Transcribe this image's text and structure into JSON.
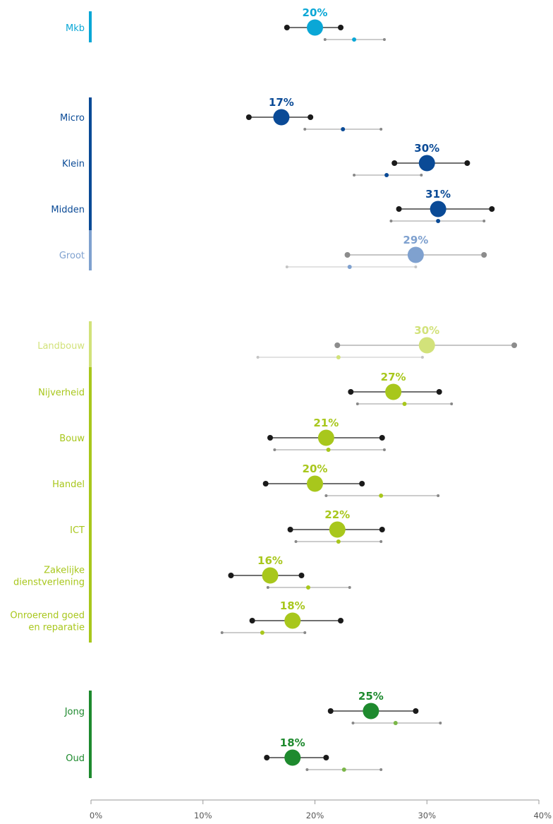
{
  "chart_data": {
    "type": "dot-range",
    "xlim": [
      0,
      40
    ],
    "x_ticks": [
      "0%",
      "10%",
      "20%",
      "30%",
      "40%"
    ],
    "groups": [
      {
        "name": "mkb",
        "color": "#0aa7d6",
        "rows": [
          {
            "label": [
              "Mkb"
            ],
            "value": 20,
            "pct_label": "20%",
            "range": [
              17.5,
              22.3
            ],
            "ref_value": 23.5,
            "ref_range": [
              20.9,
              26.2
            ],
            "color": "#0aa7d6"
          }
        ]
      },
      {
        "name": "grootte",
        "color": "#0a4a96",
        "rows": [
          {
            "label": [
              "Micro"
            ],
            "value": 17,
            "pct_label": "17%",
            "range": [
              14.1,
              19.6
            ],
            "ref_value": 22.5,
            "ref_range": [
              19.1,
              25.9
            ],
            "color": "#0a4a96"
          },
          {
            "label": [
              "Klein"
            ],
            "value": 30,
            "pct_label": "30%",
            "range": [
              27.1,
              33.6
            ],
            "ref_value": 26.4,
            "ref_range": [
              23.5,
              29.5
            ],
            "color": "#0a4a96"
          },
          {
            "label": [
              "Midden"
            ],
            "value": 31,
            "pct_label": "31%",
            "range": [
              27.5,
              35.8
            ],
            "ref_value": 31.0,
            "ref_range": [
              26.8,
              35.1
            ],
            "color": "#0a4a96"
          },
          {
            "label": [
              "Groot"
            ],
            "value": 29,
            "pct_label": "29%",
            "range": [
              22.9,
              35.1
            ],
            "ref_value": 23.1,
            "ref_range": [
              17.5,
              29.0
            ],
            "color": "#7fa1cf",
            "light": true
          }
        ]
      },
      {
        "name": "sector",
        "color": "#a8c71c",
        "rows": [
          {
            "label": [
              "Landbouw"
            ],
            "value": 30,
            "pct_label": "30%",
            "range": [
              22.0,
              37.8
            ],
            "ref_value": 22.1,
            "ref_range": [
              14.9,
              29.6
            ],
            "color": "#d2e27a",
            "light": true
          },
          {
            "label": [
              "Nijverheid"
            ],
            "value": 27,
            "pct_label": "27%",
            "range": [
              23.2,
              31.1
            ],
            "ref_value": 28.0,
            "ref_range": [
              23.8,
              32.2
            ],
            "color": "#a8c71c"
          },
          {
            "label": [
              "Bouw"
            ],
            "value": 21,
            "pct_label": "21%",
            "range": [
              16.0,
              26.0
            ],
            "ref_value": 21.2,
            "ref_range": [
              16.4,
              26.2
            ],
            "color": "#a8c71c"
          },
          {
            "label": [
              "Handel"
            ],
            "value": 20,
            "pct_label": "20%",
            "range": [
              15.6,
              24.2
            ],
            "ref_value": 25.9,
            "ref_range": [
              21.0,
              31.0
            ],
            "color": "#a8c71c"
          },
          {
            "label": [
              "ICT"
            ],
            "value": 22,
            "pct_label": "22%",
            "range": [
              17.8,
              26.0
            ],
            "ref_value": 22.1,
            "ref_range": [
              18.3,
              25.9
            ],
            "color": "#a8c71c"
          },
          {
            "label": [
              "Zakelijke",
              "dienstverlening"
            ],
            "value": 16,
            "pct_label": "16%",
            "range": [
              12.5,
              18.8
            ],
            "ref_value": 19.4,
            "ref_range": [
              15.8,
              23.1
            ],
            "color": "#a8c71c"
          },
          {
            "label": [
              "Onroerend goed",
              "en reparatie"
            ],
            "value": 18,
            "pct_label": "18%",
            "range": [
              14.4,
              22.3
            ],
            "ref_value": 15.3,
            "ref_range": [
              11.7,
              19.1
            ],
            "color": "#a8c71c"
          }
        ]
      },
      {
        "name": "leeftijd",
        "color": "#1e8a2e",
        "rows": [
          {
            "label": [
              "Jong"
            ],
            "value": 25,
            "pct_label": "25%",
            "range": [
              21.4,
              29.0
            ],
            "ref_value": 27.2,
            "ref_range": [
              23.4,
              31.2
            ],
            "ref_color": "#7ab648",
            "color": "#1e8a2e"
          },
          {
            "label": [
              "Oud"
            ],
            "value": 18,
            "pct_label": "18%",
            "range": [
              15.7,
              21.0
            ],
            "ref_value": 22.6,
            "ref_range": [
              19.3,
              25.9
            ],
            "ref_color": "#7ab648",
            "color": "#1e8a2e"
          }
        ]
      }
    ]
  }
}
